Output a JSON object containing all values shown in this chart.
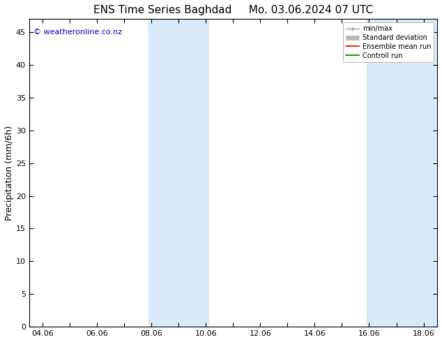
{
  "title": "ENS Time Series Baghdad     Mo. 03.06.2024 07 UTC",
  "ylabel": "Precipitation (mm/6h)",
  "ylim": [
    0,
    47
  ],
  "yticks": [
    0,
    5,
    10,
    15,
    20,
    25,
    30,
    35,
    40,
    45
  ],
  "xtick_positions": [
    0,
    1,
    2,
    3,
    4,
    5,
    6,
    7,
    8,
    9,
    10,
    11,
    12,
    13,
    14
  ],
  "xtick_labels_all": [
    "04.06",
    "",
    "06.06",
    "",
    "08.06",
    "",
    "10.06",
    "",
    "12.06",
    "",
    "14.06",
    "",
    "16.06",
    "",
    "18.06"
  ],
  "xlim": [
    -0.5,
    14.5
  ],
  "shaded_bands": [
    {
      "x_start": 3.9,
      "x_end": 5.0
    },
    {
      "x_start": 5.0,
      "x_end": 6.1
    },
    {
      "x_start": 11.9,
      "x_end": 13.0
    },
    {
      "x_start": 13.0,
      "x_end": 14.5
    }
  ],
  "shade_color": "#daeaf8",
  "shade_color2": "#cfe3f5",
  "bg_color": "#ffffff",
  "copyright_text": "© weatheronline.co.nz",
  "copyright_color": "#0000bb",
  "legend_items": [
    {
      "label": "min/max",
      "color": "#999999",
      "lw": 1.0,
      "style": "line_with_caps"
    },
    {
      "label": "Standard deviation",
      "color": "#bbbbbb",
      "lw": 5,
      "style": "thick"
    },
    {
      "label": "Ensemble mean run",
      "color": "#dd0000",
      "lw": 1.2,
      "style": "line"
    },
    {
      "label": "Controll run",
      "color": "#007700",
      "lw": 1.2,
      "style": "line"
    }
  ],
  "title_fontsize": 11,
  "axis_label_fontsize": 9,
  "tick_fontsize": 8,
  "copyright_fontsize": 8,
  "legend_fontsize": 7
}
